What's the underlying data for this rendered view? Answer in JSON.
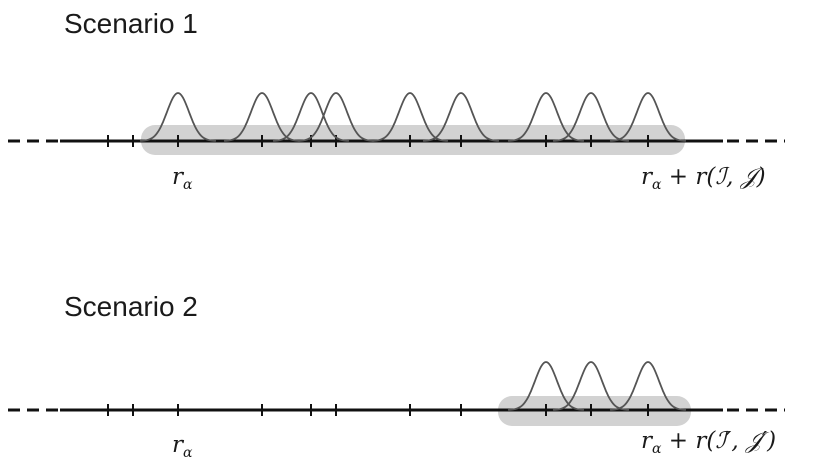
{
  "scenarios": [
    {
      "title": "Scenario 1",
      "left_label": {
        "main": "r",
        "sub": "α"
      },
      "right_label": {
        "main": "r",
        "sub": "α",
        "rest": " + r(ℐ, 𝒥)"
      }
    },
    {
      "title": "Scenario 2",
      "left_label": {
        "main": "r",
        "sub": "α"
      },
      "right_label": {
        "main": "r",
        "sub": "α",
        "rest": " + r(ℐ′, 𝒥′)"
      }
    }
  ],
  "colors": {
    "axis": "#111111",
    "curve": "#555555",
    "highlight": "#d2d2d2",
    "text": "#1a1a1a"
  }
}
